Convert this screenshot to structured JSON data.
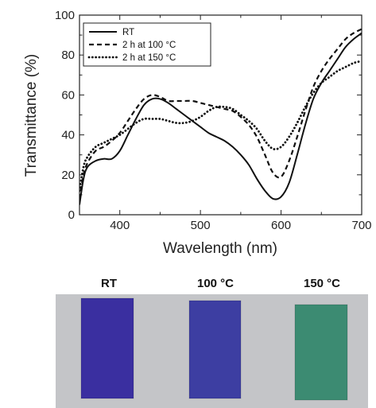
{
  "chart_data": {
    "type": "line",
    "xlabel": "Wavelength (nm)",
    "ylabel": "Transmittance (%)",
    "xlim": [
      350,
      700
    ],
    "ylim": [
      0,
      100
    ],
    "xticks": [
      400,
      500,
      600,
      700
    ],
    "yticks": [
      0,
      20,
      40,
      60,
      80,
      100
    ],
    "grid": false,
    "legend_position": "top-left",
    "series": [
      {
        "name": "RT",
        "dash": "solid",
        "x": [
          350,
          355,
          360,
          370,
          380,
          390,
          400,
          410,
          420,
          430,
          440,
          450,
          460,
          470,
          480,
          490,
          500,
          510,
          520,
          530,
          540,
          550,
          560,
          570,
          580,
          590,
          600,
          610,
          620,
          630,
          640,
          650,
          660,
          670,
          680,
          690,
          700
        ],
        "y": [
          5,
          18,
          24,
          27,
          28,
          28,
          32,
          40,
          48,
          55,
          58,
          58,
          56,
          53,
          50,
          47,
          44,
          41,
          39,
          37,
          34,
          30,
          25,
          18,
          12,
          8,
          9,
          16,
          30,
          45,
          58,
          66,
          72,
          78,
          84,
          88,
          91
        ]
      },
      {
        "name": "2 h at 100 °C",
        "dash": "dashed",
        "x": [
          350,
          355,
          360,
          370,
          380,
          390,
          400,
          410,
          420,
          430,
          440,
          450,
          460,
          470,
          480,
          490,
          500,
          510,
          520,
          530,
          540,
          550,
          560,
          570,
          580,
          590,
          600,
          610,
          620,
          630,
          640,
          650,
          660,
          670,
          680,
          690,
          700
        ],
        "y": [
          8,
          20,
          26,
          32,
          34,
          37,
          41,
          47,
          53,
          58,
          60,
          59,
          57,
          57,
          57,
          57,
          56,
          55,
          54,
          53,
          52,
          49,
          45,
          39,
          30,
          21,
          19,
          27,
          39,
          52,
          64,
          72,
          78,
          83,
          88,
          91,
          93
        ]
      },
      {
        "name": "2 h at 150 °C",
        "dash": "dotted",
        "x": [
          350,
          355,
          360,
          370,
          380,
          390,
          400,
          410,
          420,
          430,
          440,
          450,
          460,
          470,
          480,
          490,
          500,
          510,
          520,
          530,
          540,
          550,
          560,
          570,
          580,
          590,
          600,
          610,
          620,
          630,
          640,
          650,
          660,
          670,
          680,
          690,
          700
        ],
        "y": [
          12,
          24,
          29,
          34,
          36,
          38,
          40,
          43,
          46,
          48,
          48,
          48,
          47,
          46,
          46,
          47,
          49,
          52,
          54,
          54,
          53,
          50,
          47,
          43,
          37,
          33,
          34,
          39,
          46,
          54,
          61,
          66,
          69,
          72,
          74,
          76,
          77
        ]
      }
    ]
  },
  "samples": [
    {
      "label": "RT",
      "color": "#3a2fa0"
    },
    {
      "label": "100 °C",
      "color": "#3d3ea2"
    },
    {
      "label": "150 °C",
      "color": "#3c8b72"
    }
  ],
  "photo_background": "#c4c5c8"
}
